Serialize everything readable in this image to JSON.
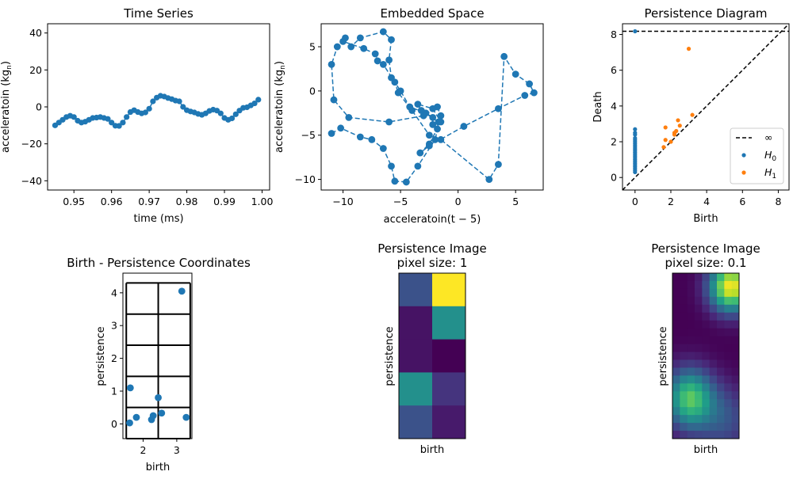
{
  "chart_data": [
    {
      "type": "line",
      "title": "Time Series",
      "xlabel": "time (ms)",
      "ylabel": "acceleratoin (kg$_n$)",
      "ylabel_main": "acceleratoin (kg",
      "ylabel_sub": "n",
      "ylabel_close": ")",
      "xlim": [
        0.943,
        1.002
      ],
      "ylim": [
        -45,
        45
      ],
      "xticks": [
        0.95,
        0.96,
        0.97,
        0.98,
        0.99,
        1.0
      ],
      "xtick_labels": [
        "0.95",
        "0.96",
        "0.97",
        "0.98",
        "0.99",
        "1.00"
      ],
      "yticks": [
        -40,
        -20,
        0,
        20,
        40
      ],
      "ytick_labels": [
        "−40",
        "−20",
        "0",
        "20",
        "40"
      ],
      "color": "#1f77b4",
      "series": [
        {
          "x": [
            0.945,
            0.946,
            0.947,
            0.948,
            0.949,
            0.95,
            0.951,
            0.952,
            0.953,
            0.954,
            0.955,
            0.956,
            0.957,
            0.958,
            0.959,
            0.96,
            0.961,
            0.962,
            0.963,
            0.964,
            0.965,
            0.966,
            0.967,
            0.968,
            0.969,
            0.97,
            0.971,
            0.972,
            0.973,
            0.974,
            0.975,
            0.976,
            0.977,
            0.978,
            0.979,
            0.98,
            0.981,
            0.982,
            0.983,
            0.984,
            0.985,
            0.986,
            0.987,
            0.988,
            0.989,
            0.99,
            0.991,
            0.992,
            0.993,
            0.994,
            0.995,
            0.996,
            0.997,
            0.998,
            0.999
          ],
          "y": [
            -10,
            -8.5,
            -7,
            -5.5,
            -4.8,
            -5.5,
            -7.5,
            -8.5,
            -8,
            -7,
            -6,
            -5.8,
            -5.5,
            -6,
            -6.5,
            -8.5,
            -10.2,
            -10.3,
            -8.5,
            -5.5,
            -2.8,
            -1.8,
            -2.8,
            -3.5,
            -3,
            -1,
            3,
            5,
            6,
            5.6,
            4.8,
            4.2,
            3.4,
            3,
            0,
            -1.8,
            -2.5,
            -3,
            -3.8,
            -4.3,
            -3.5,
            -2.2,
            -1.5,
            -2,
            -3.5,
            -6,
            -7,
            -6.2,
            -4,
            -2,
            -0.5,
            -0.2,
            0.8,
            1.9,
            3.9
          ]
        }
      ]
    },
    {
      "type": "line",
      "title": "Embedded Space",
      "xlabel": "acceleratoin(t − 5)",
      "ylabel_main": "acceleratoin (kg",
      "ylabel_sub": "n",
      "ylabel_close": ")",
      "xlim": [
        -11.9,
        7.4
      ],
      "ylim": [
        -11.2,
        7.6
      ],
      "xticks": [
        -10,
        -5,
        0,
        5
      ],
      "xtick_labels": [
        "−10",
        "−5",
        "0",
        "5"
      ],
      "yticks": [
        -10,
        -5,
        0,
        5
      ],
      "ytick_labels": [
        "−10",
        "−5",
        "0",
        "5"
      ],
      "color": "#1f77b4",
      "series": [
        {
          "x": [
            -11,
            -10.2,
            -8.5,
            -7.5,
            -6.5,
            -5.8,
            -5.5,
            -4.5,
            -3.5,
            -2,
            -1.5,
            -1.8,
            -3,
            -6,
            -9.5,
            -10.8,
            -11,
            -10.5,
            -9.8,
            -10,
            -8.2,
            -7.2,
            -7,
            -6.5,
            -5,
            -4.2,
            -2.8,
            -2.2,
            -2.2,
            -1.8,
            -1.7,
            -3.2,
            -3.5,
            -2.2,
            -1.5,
            -2.5,
            -3.3,
            -2.5,
            0.5,
            3.5,
            5.8,
            6.6,
            6.2,
            5,
            4,
            3.5,
            2.7,
            -1.5,
            -2.5,
            -4,
            -5.2,
            -5.5,
            -5.8,
            -6,
            -5.8,
            -6.5,
            -8.5,
            -9.3
          ],
          "y": [
            -4.8,
            -4.2,
            -5.2,
            -5.5,
            -6.5,
            -8.5,
            -10.2,
            -10.3,
            -8.5,
            -5.5,
            -2.8,
            -1.8,
            -2.8,
            -3.5,
            -3,
            -1,
            3,
            5,
            6,
            5.6,
            4.8,
            4.2,
            3.4,
            3,
            0,
            -1.8,
            -2.5,
            -3,
            -3.8,
            -4.3,
            -3.5,
            -2.2,
            -1.5,
            -2,
            -3.5,
            -6,
            -7,
            -6.2,
            -4,
            -2,
            -0.5,
            -0.2,
            0.8,
            1.9,
            3.9,
            -8.3,
            -10,
            -5.5,
            -5,
            -2.2,
            -0.2,
            1,
            1.5,
            3.5,
            5.8,
            6.7,
            6,
            5
          ]
        }
      ]
    },
    {
      "type": "scatter",
      "title": "Persistence Diagram",
      "xlabel": "Birth",
      "ylabel": "Death",
      "xlim": [
        -0.7,
        8.6
      ],
      "ylim": [
        -0.7,
        8.6
      ],
      "xticks": [
        0,
        2,
        4,
        6,
        8
      ],
      "xtick_labels": [
        "0",
        "2",
        "4",
        "6",
        "8"
      ],
      "yticks": [
        0,
        2,
        4,
        6,
        8
      ],
      "ytick_labels": [
        "0",
        "2",
        "4",
        "6",
        "8"
      ],
      "inf_level": 8.18,
      "legend": [
        "∞",
        "H",
        "H"
      ],
      "legend_subs": [
        "0",
        "1"
      ],
      "legend_position": "lower right",
      "series": [
        {
          "name": "H0",
          "color": "#1f77b4",
          "x": [
            0,
            0,
            0,
            0,
            0,
            0,
            0,
            0,
            0,
            0,
            0,
            0,
            0,
            0,
            0,
            0,
            0,
            0,
            0,
            0,
            0,
            0,
            0,
            0
          ],
          "y": [
            0.3,
            0.4,
            0.5,
            0.6,
            0.7,
            0.8,
            0.9,
            1.0,
            1.1,
            1.2,
            1.3,
            1.4,
            1.5,
            1.6,
            1.7,
            1.8,
            1.9,
            2.0,
            2.1,
            2.2,
            2.4,
            2.5,
            2.7,
            8.18
          ]
        },
        {
          "name": "H1",
          "color": "#ff7f0e",
          "x": [
            1.6,
            1.7,
            1.7,
            2.0,
            2.2,
            2.2,
            2.3,
            2.4,
            2.5,
            3.0,
            3.2
          ],
          "y": [
            1.7,
            2.1,
            2.8,
            2.0,
            2.4,
            2.5,
            2.6,
            3.2,
            2.9,
            7.2,
            3.5
          ]
        }
      ]
    },
    {
      "type": "scatter",
      "title": "Birth - Persistence Coordinates",
      "xlabel": "birth",
      "ylabel": "persistence",
      "xlim": [
        1.4,
        3.45
      ],
      "ylim": [
        -0.45,
        4.6
      ],
      "xticks": [
        2,
        3
      ],
      "xtick_labels": [
        "2",
        "3"
      ],
      "yticks": [
        0,
        1,
        2,
        3,
        4
      ],
      "ytick_labels": [
        "0",
        "1",
        "2",
        "3",
        "4"
      ],
      "grid_x": [
        1.5,
        2.45,
        3.4
      ],
      "grid_y": [
        -0.45,
        0.5,
        1.45,
        2.4,
        3.35,
        4.3
      ],
      "color": "#1f77b4",
      "series": [
        {
          "x": [
            1.6,
            1.62,
            1.8,
            2.25,
            2.3,
            2.45,
            2.55,
            3.15,
            3.28
          ],
          "y": [
            0.03,
            1.1,
            0.2,
            0.13,
            0.25,
            0.8,
            0.33,
            4.05,
            0.2
          ]
        }
      ]
    },
    {
      "type": "heatmap",
      "title": "Persistence Image",
      "subtitle": "pixel size: 1",
      "xlabel": "birth",
      "ylabel": "persistence",
      "rows": 5,
      "cols": 2,
      "values": [
        [
          0.25,
          1.0
        ],
        [
          0.05,
          0.5
        ],
        [
          0.05,
          0.0
        ],
        [
          0.5,
          0.15
        ],
        [
          0.25,
          0.07
        ]
      ]
    },
    {
      "type": "heatmap",
      "title": "Persistence Image",
      "subtitle": "pixel size: 0.1",
      "xlabel": "birth",
      "ylabel": "persistence",
      "rows": 21,
      "cols": 9,
      "blobs": [
        {
          "cx": 7.4,
          "cy": 1.2,
          "sx": 2.0,
          "sy": 2.2,
          "amp": 1.0
        },
        {
          "cx": 1.8,
          "cy": 15.4,
          "sx": 2.2,
          "sy": 2.6,
          "amp": 0.72
        },
        {
          "cx": 6.5,
          "cy": 18.0,
          "sx": 2.6,
          "sy": 3.0,
          "amp": 0.25
        }
      ]
    }
  ]
}
